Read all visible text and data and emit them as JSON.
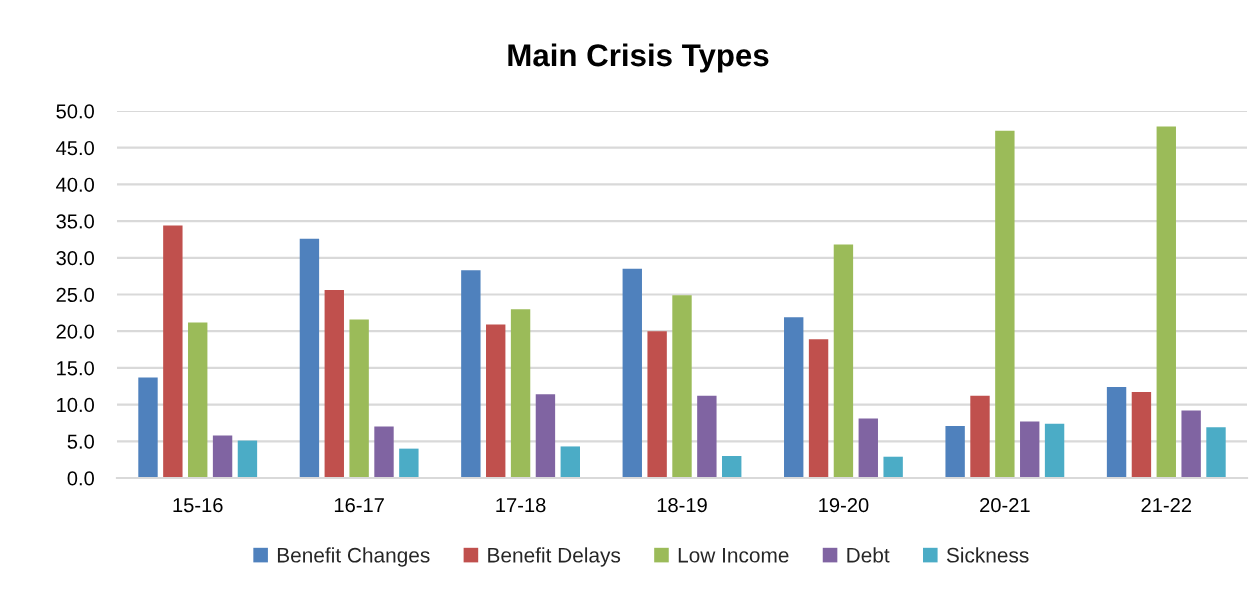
{
  "chart_data": {
    "type": "bar",
    "title": "Main Crisis Types",
    "categories": [
      "15-16",
      "16-17",
      "17-18",
      "18-19",
      "19-20",
      "20-21",
      "21-22"
    ],
    "series": [
      {
        "name": "Benefit Changes",
        "color": "#4f81bd",
        "values": [
          13.7,
          32.6,
          28.3,
          28.5,
          21.9,
          7.1,
          12.4
        ]
      },
      {
        "name": "Benefit Delays",
        "color": "#c0504d",
        "values": [
          34.4,
          25.6,
          20.9,
          20.0,
          18.9,
          11.2,
          11.7
        ]
      },
      {
        "name": "Low Income",
        "color": "#9bbb59",
        "values": [
          21.2,
          21.6,
          23.0,
          24.9,
          31.8,
          47.3,
          47.9
        ]
      },
      {
        "name": "Debt",
        "color": "#8064a2",
        "values": [
          5.8,
          7.0,
          11.4,
          11.2,
          8.1,
          7.7,
          9.2
        ]
      },
      {
        "name": "Sickness",
        "color": "#4bacc6",
        "values": [
          5.1,
          4.0,
          4.3,
          3.0,
          2.9,
          7.4,
          6.9
        ]
      }
    ],
    "ylim": [
      0,
      50
    ],
    "yticks": [
      {
        "value": 0,
        "label": "0.0"
      },
      {
        "value": 5,
        "label": "5.0"
      },
      {
        "value": 10,
        "label": "10.0"
      },
      {
        "value": 15,
        "label": "15.0"
      },
      {
        "value": 20,
        "label": "20.0"
      },
      {
        "value": 25,
        "label": "25.0"
      },
      {
        "value": 30,
        "label": "30.0"
      },
      {
        "value": 35,
        "label": "35.0"
      },
      {
        "value": 40,
        "label": "40.0"
      },
      {
        "value": 45,
        "label": "45.0"
      },
      {
        "value": 50,
        "label": "50.0"
      }
    ],
    "grid": "y",
    "legend": "bottom"
  }
}
